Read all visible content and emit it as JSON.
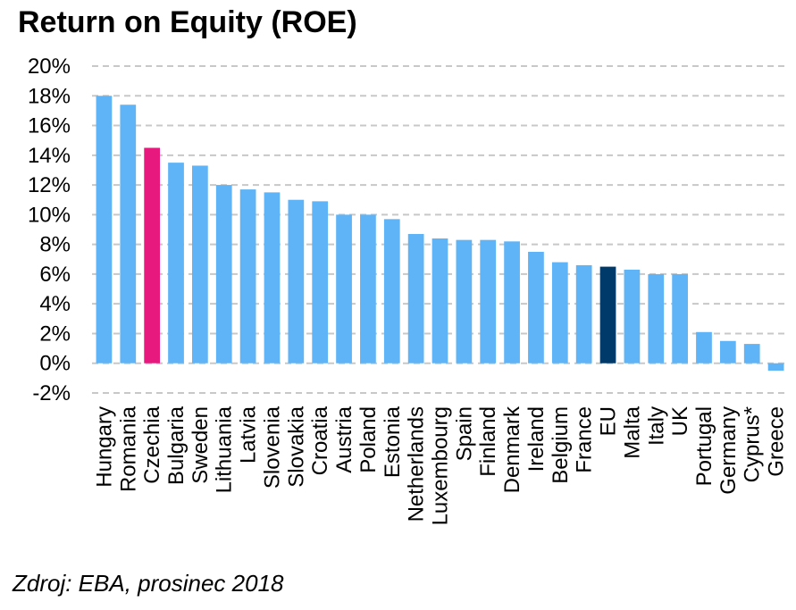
{
  "title": "Return on Equity (ROE)",
  "source": "Zdroj: EBA, prosinec 2018",
  "chart_data": {
    "type": "bar",
    "title": "Return on Equity (ROE)",
    "xlabel": "",
    "ylabel": "",
    "ylim": [
      -2,
      20
    ],
    "yticks": [
      20,
      18,
      16,
      14,
      12,
      10,
      8,
      6,
      4,
      2,
      0,
      -2
    ],
    "ytick_labels": [
      "20%",
      "18%",
      "16%",
      "14%",
      "12%",
      "10%",
      "8%",
      "6%",
      "4%",
      "2%",
      "0%",
      "-2%"
    ],
    "grid": true,
    "categories": [
      "Hungary",
      "Romania",
      "Czechia",
      "Bulgaria",
      "Sweden",
      "Lithuania",
      "Latvia",
      "Slovenia",
      "Slovakia",
      "Croatia",
      "Austria",
      "Poland",
      "Estonia",
      "Netherlands",
      "Luxembourg",
      "Spain",
      "Finland",
      "Denmark",
      "Ireland",
      "Belgium",
      "France",
      "EU",
      "Malta",
      "Italy",
      "UK",
      "Portugal",
      "Germany",
      "Cyprus*",
      "Greece"
    ],
    "values": [
      18.0,
      17.4,
      14.5,
      13.5,
      13.3,
      12.0,
      11.7,
      11.5,
      11.0,
      10.9,
      10.0,
      10.0,
      9.7,
      8.7,
      8.4,
      8.3,
      8.3,
      8.2,
      7.5,
      6.8,
      6.6,
      6.5,
      6.3,
      6.0,
      6.0,
      2.1,
      1.5,
      1.3,
      -0.5
    ],
    "colors": {
      "default": "#5eb4f7",
      "Czechia": "#e8197e",
      "EU": "#003a6b"
    }
  }
}
